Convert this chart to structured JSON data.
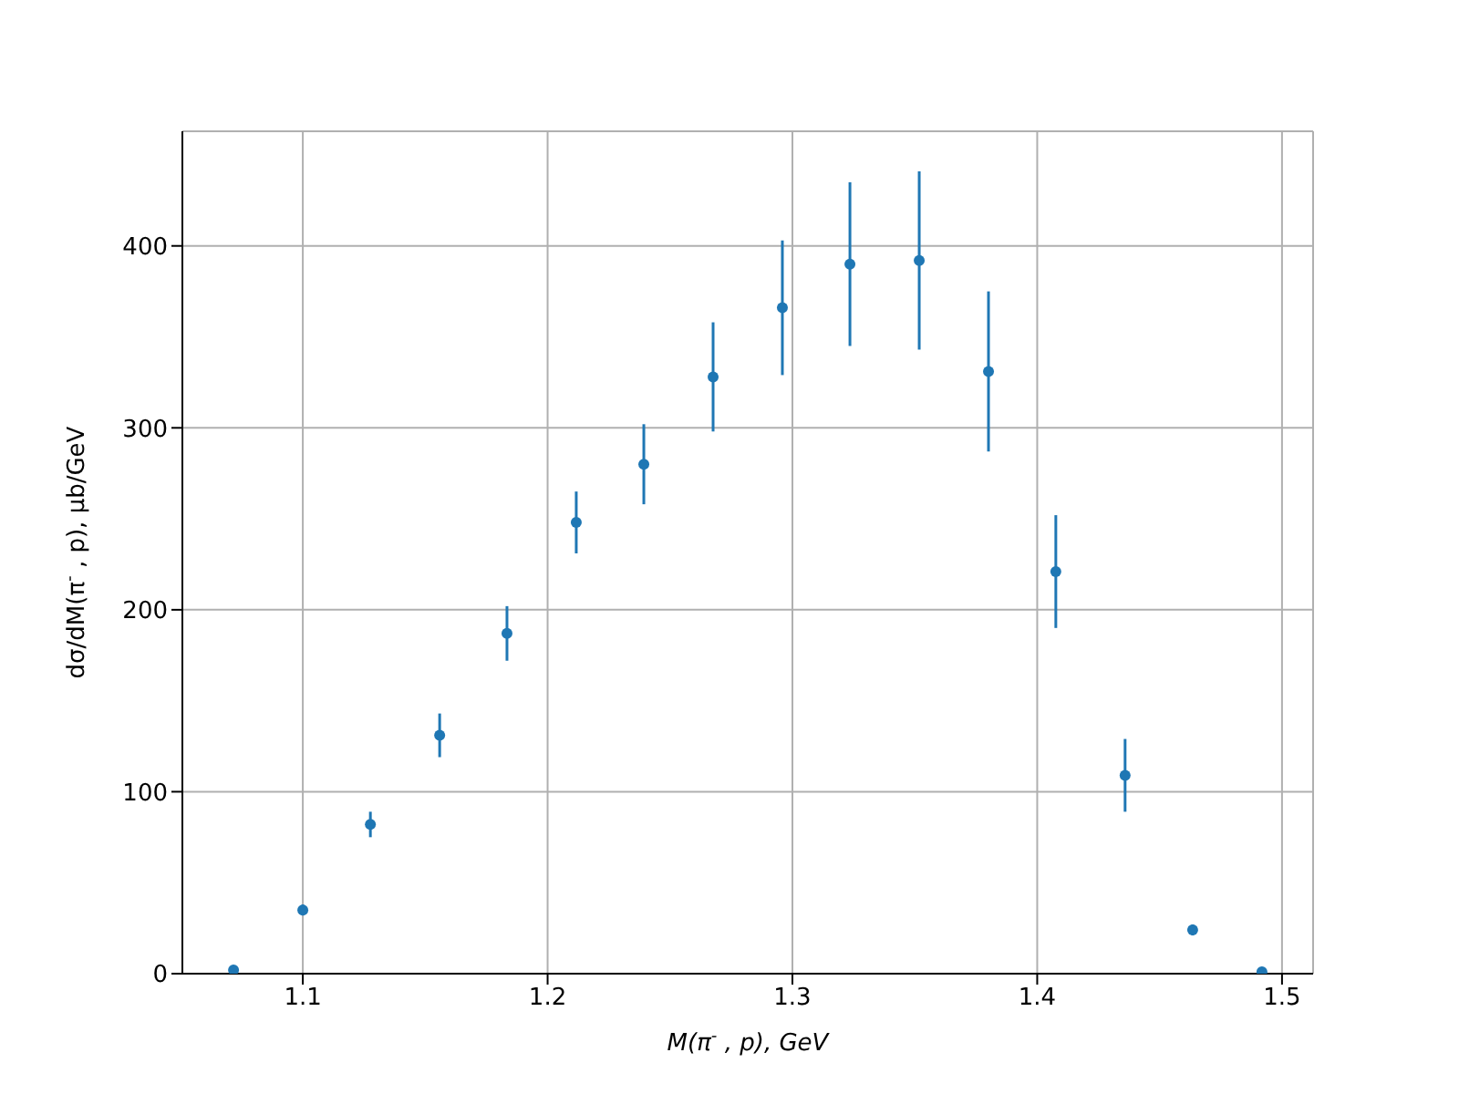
{
  "chart_data": {
    "type": "scatter",
    "xlabel": "M(π$^{-}$, p), GeV",
    "ylabel": "dσ/dM(π$^{-}$, p), μb/GeV",
    "x": [
      1.0717,
      1.1,
      1.1276,
      1.1559,
      1.1834,
      1.2117,
      1.2393,
      1.2676,
      1.2959,
      1.3235,
      1.3518,
      1.3801,
      1.4076,
      1.4359,
      1.4635,
      1.4918
    ],
    "series": [
      {
        "color": "#1f77b4",
        "values": [
          2,
          35,
          82,
          131,
          187,
          248,
          280,
          328,
          366,
          390,
          392,
          331,
          221,
          109,
          24,
          1
        ],
        "errors": [
          1,
          3,
          7,
          12,
          15,
          17,
          22,
          30,
          37,
          45,
          49,
          44,
          31,
          20,
          3,
          1
        ]
      }
    ],
    "xlim": [
      1.0508,
      1.5127
    ],
    "xticks": [
      1.1,
      1.2,
      1.3,
      1.4,
      1.5
    ],
    "ylim": [
      0,
      463
    ],
    "yticks": [
      0,
      100,
      200,
      300,
      400
    ],
    "grid": true,
    "marker": "circle"
  }
}
